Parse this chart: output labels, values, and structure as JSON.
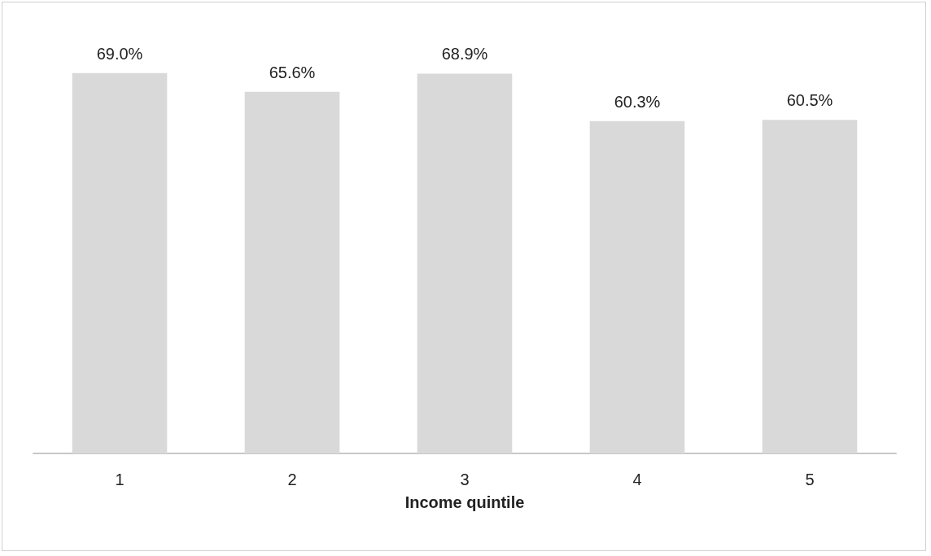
{
  "chart_data": {
    "type": "bar",
    "xlabel": "Income quintile",
    "categories": [
      "1",
      "2",
      "3",
      "4",
      "5"
    ],
    "values": [
      69.0,
      65.6,
      68.9,
      60.3,
      60.5
    ],
    "value_labels": [
      "69.0%",
      "65.6%",
      "68.9%",
      "60.3%",
      "60.5%"
    ],
    "color": "#d9d9d9"
  }
}
